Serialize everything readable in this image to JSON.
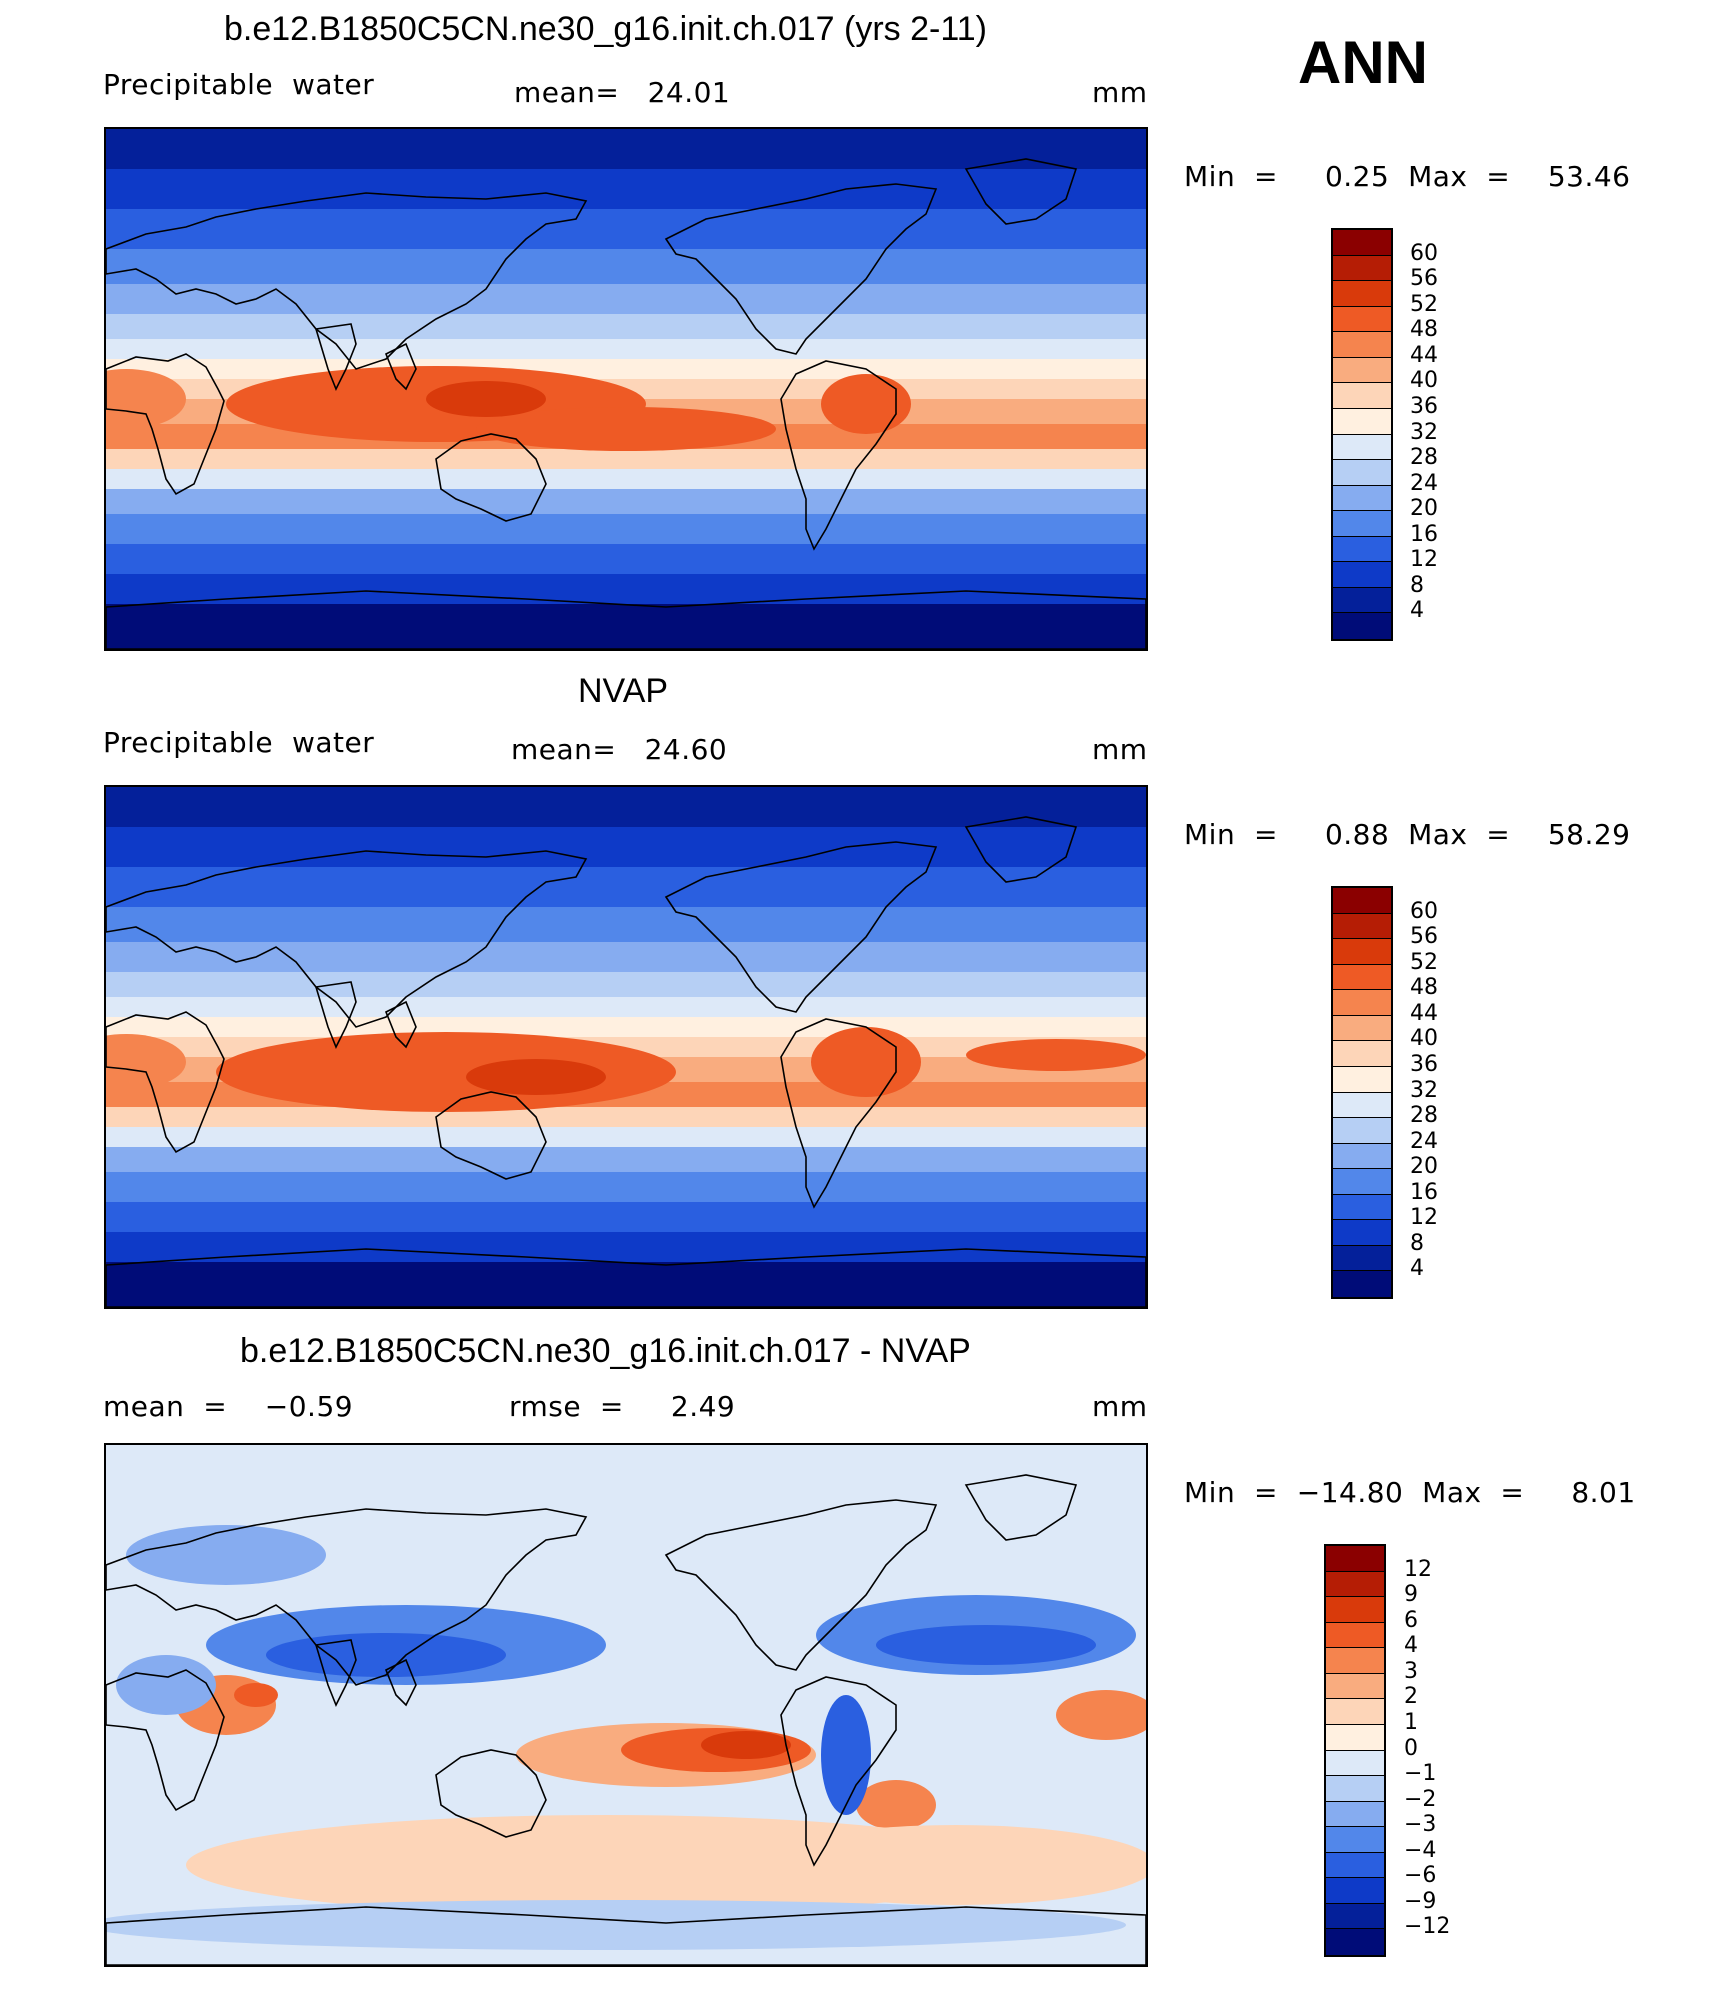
{
  "header": {
    "season": "ANN"
  },
  "panels": [
    {
      "title": "b.e12.B1850C5CN.ne30_g16.init.ch.017 (yrs 2-11)",
      "left_label": "Precipitable  water",
      "mid_label": "mean=   24.01",
      "units": "mm",
      "minmax": "Min  =     0.25  Max  =    53.46",
      "colorbar": {
        "labels": [
          "60",
          "56",
          "52",
          "48",
          "44",
          "40",
          "36",
          "32",
          "28",
          "24",
          "20",
          "16",
          "12",
          "8",
          "4"
        ],
        "colors": [
          "#8b0000",
          "#b51d05",
          "#d93a0b",
          "#ee5a25",
          "#f5844e",
          "#f9ac7f",
          "#fdd5b8",
          "#fff0e0",
          "#dde9f8",
          "#b6cff4",
          "#86acf0",
          "#5287ea",
          "#2a5fe0",
          "#0e3ac8",
          "#04209a",
          "#000c78"
        ]
      },
      "map_type": "sequential"
    },
    {
      "title": "NVAP",
      "left_label": "Precipitable  water",
      "mid_label": "mean=   24.60",
      "units": "mm",
      "minmax": "Min  =     0.88  Max  =    58.29",
      "colorbar": {
        "labels": [
          "60",
          "56",
          "52",
          "48",
          "44",
          "40",
          "36",
          "32",
          "28",
          "24",
          "20",
          "16",
          "12",
          "8",
          "4"
        ],
        "colors": [
          "#8b0000",
          "#b51d05",
          "#d93a0b",
          "#ee5a25",
          "#f5844e",
          "#f9ac7f",
          "#fdd5b8",
          "#fff0e0",
          "#dde9f8",
          "#b6cff4",
          "#86acf0",
          "#5287ea",
          "#2a5fe0",
          "#0e3ac8",
          "#04209a",
          "#000c78"
        ]
      },
      "map_type": "sequential"
    },
    {
      "title": "b.e12.B1850C5CN.ne30_g16.init.ch.017 - NVAP",
      "left_label": "mean  =    −0.59",
      "mid_label": "rmse  =     2.49",
      "units": "mm",
      "minmax": "Min  =  −14.80  Max  =     8.01",
      "colorbar": {
        "labels": [
          "12",
          "9",
          "6",
          "4",
          "3",
          "2",
          "1",
          "0",
          "−1",
          "−2",
          "−3",
          "−4",
          "−6",
          "−9",
          "−12"
        ],
        "colors": [
          "#8b0000",
          "#b51d05",
          "#d93a0b",
          "#ee5a25",
          "#f5844e",
          "#f9ac7f",
          "#fdd5b8",
          "#fff0e0",
          "#dde9f8",
          "#b6cff4",
          "#86acf0",
          "#5287ea",
          "#2a5fe0",
          "#0e3ac8",
          "#04209a",
          "#000c78"
        ]
      },
      "map_type": "difference"
    }
  ]
}
